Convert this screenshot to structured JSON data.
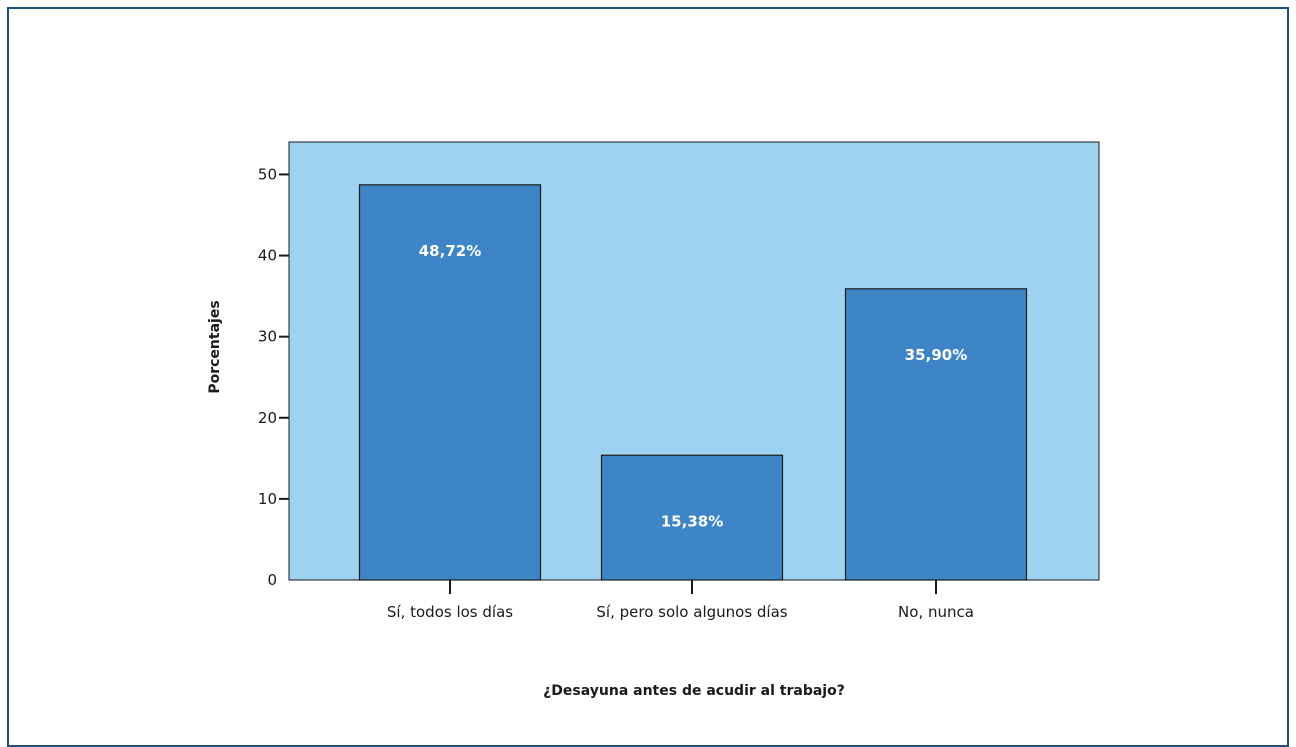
{
  "colors": {
    "frame_border": "#1f4e79",
    "plot_background": "#9dd3f0",
    "bar_fill": "#3d85c6",
    "bar_stroke": "#1a1a1a",
    "data_label": "#ffffff"
  },
  "chart_data": {
    "type": "bar",
    "categories": [
      "Sí, todos los días",
      "Sí, pero solo algunos días",
      "No, nunca"
    ],
    "values": [
      48.72,
      15.38,
      35.9
    ],
    "data_labels": [
      "48,72%",
      "15,38%",
      "35,90%"
    ],
    "xlabel": "¿Desayuna antes de acudir al trabajo?",
    "ylabel": "Porcentajes",
    "ylim": [
      0,
      54
    ],
    "yticks": [
      0,
      10,
      20,
      30,
      40,
      50
    ],
    "ytick_labels": [
      "0",
      "10",
      "20",
      "30",
      "40",
      "50"
    ],
    "grid": false,
    "legend": "none"
  }
}
